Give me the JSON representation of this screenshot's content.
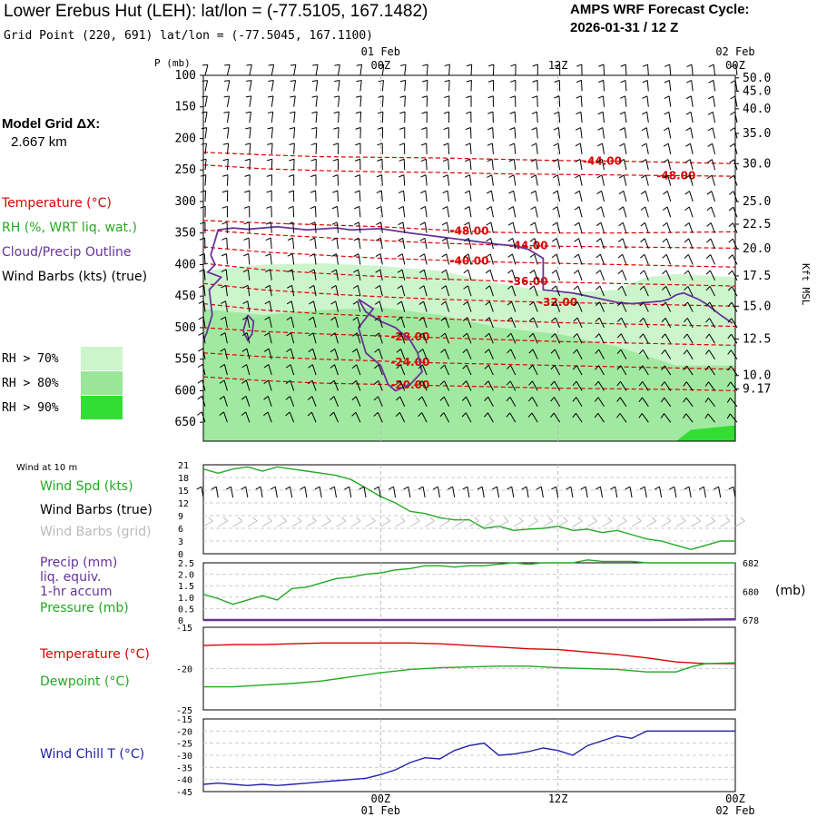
{
  "header": {
    "title": "Lower Erebus Hut (LEH):  lat/lon = (-77.5105, 167.1482)",
    "subtitle": "Grid Point (220, 691) lat/lon = (-77.5045, 167.1100)",
    "cycle_line1": "AMPS WRF Forecast Cycle:",
    "cycle_line2": "2026-01-31 / 12  Z",
    "grid_label1": "Model Grid ΔX:",
    "grid_label2": "2.667 km"
  },
  "time_axis": {
    "top_labels": [
      {
        "date": "01 Feb",
        "time": "00Z",
        "hour": 12
      },
      {
        "date": "",
        "time": "12Z",
        "hour": 24
      },
      {
        "date": "02 Feb",
        "time": "00Z",
        "hour": 36
      }
    ],
    "bottom_labels": [
      {
        "time": "00Z",
        "date": "01 Feb",
        "hour": 12
      },
      {
        "time": "12Z",
        "date": "",
        "hour": 24
      },
      {
        "time": "00Z",
        "date": "02 Feb",
        "hour": 36
      }
    ]
  },
  "legend": {
    "temperature": "Temperature (°C)",
    "rh": "RH (%, WRT liq. wat.)",
    "cloud": "Cloud/Precip Outline",
    "wind": "Wind Barbs (kts) (true)",
    "rh70": "RH > 70%",
    "rh80": "RH > 80%",
    "rh90": "RH > 90%",
    "color_temp": "#dd0000",
    "color_rh": "#22aa22",
    "color_cloud": "#663399",
    "color_rh70": "#ccf5cc",
    "color_rh80": "#99e699",
    "color_rh90": "#33dd33"
  },
  "panel_labels": {
    "wind10m": "Wind at 10 m",
    "wind_spd": "Wind Spd (kts)",
    "wind_barbs_true": "Wind Barbs (true)",
    "wind_barbs_grid": "Wind Barbs (grid)",
    "precip1": "Precip (mm)",
    "precip2": "liq. equiv.",
    "precip3": "1-hr accum",
    "pressure": "Pressure (mb)",
    "pressure_unit": "(mb)",
    "temperature": "Temperature (°C)",
    "dewpoint": "Dewpoint (°C)",
    "windchill": "Wind Chill T (°C)"
  },
  "chart_data": [
    {
      "type": "heatmap",
      "id": "upper-air",
      "left_axis_label": "P (mb)",
      "right_axis_label": "Kft MSL",
      "x_range_hours": [
        0,
        36
      ],
      "pressure_range": [
        100,
        680
      ],
      "pressure_ticks": [
        100,
        150,
        200,
        250,
        300,
        350,
        400,
        450,
        500,
        550,
        600,
        650
      ],
      "height_ticks": [
        {
          "label": "50.0",
          "p": 104
        },
        {
          "label": "45.0",
          "p": 125
        },
        {
          "label": "40.0",
          "p": 153
        },
        {
          "label": "35.0",
          "p": 192
        },
        {
          "label": "30.0",
          "p": 240
        },
        {
          "label": "25.0",
          "p": 300
        },
        {
          "label": "22.5",
          "p": 336
        },
        {
          "label": "20.0",
          "p": 375
        },
        {
          "label": "17.5",
          "p": 418
        },
        {
          "label": "15.0",
          "p": 466
        },
        {
          "label": "12.5",
          "p": 518
        },
        {
          "label": "10.0",
          "p": 576
        },
        {
          "label": "9.17",
          "p": 597
        }
      ],
      "temperature_contours": [
        {
          "label": "-48.00",
          "label_hour": 32,
          "points": [
            [
              0,
              242
            ],
            [
              4,
              248
            ],
            [
              8,
              251
            ],
            [
              12,
              253
            ],
            [
              16,
              254
            ],
            [
              20,
              256
            ],
            [
              24,
              257
            ],
            [
              28,
              258
            ],
            [
              32,
              259
            ],
            [
              36,
              260
            ]
          ]
        },
        {
          "label": "-44.00",
          "label_hour": 27,
          "points": [
            [
              0,
              222
            ],
            [
              4,
              226
            ],
            [
              8,
              229
            ],
            [
              12,
              230
            ],
            [
              16,
              231
            ],
            [
              20,
              233
            ],
            [
              24,
              235
            ],
            [
              28,
              236
            ],
            [
              32,
              238
            ],
            [
              36,
              240
            ]
          ]
        },
        {
          "label": "-48.00",
          "label_hour": 18,
          "points": [
            [
              0,
              330
            ],
            [
              4,
              334
            ],
            [
              8,
              337
            ],
            [
              12,
              340
            ],
            [
              16,
              345
            ],
            [
              20,
              349
            ],
            [
              24,
              350
            ],
            [
              28,
              350
            ],
            [
              32,
              349
            ],
            [
              36,
              348
            ]
          ]
        },
        {
          "label": "-44.00",
          "label_hour": 22,
          "points": [
            [
              0,
              345
            ],
            [
              4,
              352
            ],
            [
              8,
              357
            ],
            [
              12,
              362
            ],
            [
              16,
              366
            ],
            [
              20,
              369
            ],
            [
              24,
              371
            ],
            [
              28,
              372
            ],
            [
              32,
              373
            ],
            [
              36,
              374
            ]
          ]
        },
        {
          "label": "-40.00",
          "label_hour": 18,
          "points": [
            [
              0,
              372
            ],
            [
              4,
              380
            ],
            [
              8,
              385
            ],
            [
              12,
              390
            ],
            [
              16,
              393
            ],
            [
              20,
              396
            ],
            [
              24,
              398
            ],
            [
              28,
              400
            ],
            [
              32,
              402
            ],
            [
              36,
              404
            ]
          ]
        },
        {
          "label": "-36.00",
          "label_hour": 22,
          "points": [
            [
              0,
              398
            ],
            [
              4,
              408
            ],
            [
              8,
              414
            ],
            [
              12,
              419
            ],
            [
              16,
              423
            ],
            [
              20,
              426
            ],
            [
              24,
              428
            ],
            [
              28,
              430
            ],
            [
              32,
              432
            ],
            [
              36,
              434
            ]
          ]
        },
        {
          "label": "-32.00",
          "label_hour": 24,
          "points": [
            [
              0,
              430
            ],
            [
              4,
              440
            ],
            [
              8,
              446
            ],
            [
              12,
              451
            ],
            [
              16,
              455
            ],
            [
              20,
              458
            ],
            [
              24,
              460
            ],
            [
              28,
              462
            ],
            [
              32,
              464
            ],
            [
              36,
              466
            ]
          ]
        },
        {
          "label": "",
          "label_hour": 0,
          "points": [
            [
              0,
              462
            ],
            [
              4,
              472
            ],
            [
              8,
              478
            ],
            [
              12,
              482
            ],
            [
              16,
              486
            ],
            [
              20,
              489
            ],
            [
              24,
              492
            ],
            [
              28,
              494
            ],
            [
              32,
              496
            ],
            [
              36,
              498
            ]
          ]
        },
        {
          "label": "-28.00",
          "label_hour": 14,
          "points": [
            [
              0,
              500
            ],
            [
              4,
              506
            ],
            [
              8,
              510
            ],
            [
              12,
              513
            ],
            [
              16,
              516
            ],
            [
              20,
              519
            ],
            [
              24,
              522
            ],
            [
              28,
              524
            ],
            [
              32,
              526
            ],
            [
              36,
              528
            ]
          ]
        },
        {
          "label": "-24.00",
          "label_hour": 14,
          "points": [
            [
              0,
              540
            ],
            [
              4,
              546
            ],
            [
              8,
              550
            ],
            [
              12,
              553
            ],
            [
              16,
              556
            ],
            [
              20,
              558
            ],
            [
              24,
              560
            ],
            [
              28,
              562
            ],
            [
              32,
              564
            ],
            [
              36,
              566
            ]
          ]
        },
        {
          "label": "-20.00",
          "label_hour": 14,
          "points": [
            [
              0,
              578
            ],
            [
              4,
              584
            ],
            [
              8,
              588
            ],
            [
              12,
              590
            ],
            [
              16,
              592
            ],
            [
              20,
              594
            ],
            [
              24,
              596
            ],
            [
              28,
              597
            ],
            [
              32,
              598
            ],
            [
              36,
              600
            ]
          ]
        }
      ]
    },
    {
      "type": "line",
      "id": "wind-10m",
      "x_range_hours": [
        0,
        36
      ],
      "ylim": [
        0,
        21
      ],
      "yticks": [
        0,
        3,
        6,
        9,
        12,
        15,
        18,
        21
      ],
      "series": [
        {
          "name": "Wind Spd (kts)",
          "color": "#22aa22",
          "x": [
            0,
            1,
            2,
            3,
            4,
            5,
            6,
            7,
            8,
            9,
            10,
            11,
            12,
            13,
            14,
            15,
            16,
            17,
            18,
            19,
            20,
            21,
            22,
            23,
            24,
            25,
            26,
            27,
            28,
            29,
            30,
            31,
            32,
            33,
            34,
            35,
            36
          ],
          "values": [
            20,
            19,
            20,
            20.5,
            19.5,
            20.5,
            20,
            19.5,
            19,
            18.5,
            17.5,
            15.5,
            13.5,
            12,
            10,
            9.5,
            8.5,
            8,
            8,
            6,
            6.5,
            5.5,
            5.8,
            6,
            6.5,
            5.5,
            5.8,
            5,
            5.5,
            4.5,
            3.5,
            3,
            2,
            1,
            2,
            3,
            3
          ]
        }
      ]
    },
    {
      "type": "line",
      "id": "precip-pressure",
      "x_range_hours": [
        0,
        36
      ],
      "ylim_left": [
        0,
        2.5
      ],
      "yticks_left": [
        0,
        0.5,
        1.0,
        1.5,
        2.0,
        2.5
      ],
      "ylim_right": [
        678,
        682
      ],
      "yticks_right": [
        678,
        680,
        682
      ],
      "series": [
        {
          "name": "Pressure (mb)",
          "color": "#22aa22",
          "axis": "right",
          "x": [
            0,
            1,
            2,
            3,
            4,
            5,
            6,
            7,
            8,
            9,
            10,
            11,
            12,
            13,
            14,
            15,
            16,
            17,
            18,
            19,
            20,
            21,
            22,
            23,
            24,
            25,
            26,
            27,
            28,
            29,
            30,
            31,
            32,
            33,
            34,
            35,
            36
          ],
          "values": [
            679.8,
            679.5,
            679.1,
            679.4,
            679.7,
            679.4,
            680.2,
            680.3,
            680.6,
            680.9,
            681,
            681.2,
            681.3,
            681.5,
            681.6,
            681.8,
            681.8,
            681.7,
            681.8,
            681.8,
            681.9,
            682,
            681.9,
            682,
            682,
            682,
            682.2,
            682.1,
            682.1,
            682.1,
            682,
            682,
            682,
            682,
            682,
            682,
            682
          ]
        },
        {
          "name": "Precip (mm)",
          "color": "#663399",
          "axis": "left",
          "x": [
            0,
            6,
            12,
            18,
            24,
            30,
            36
          ],
          "values": [
            0,
            0,
            0,
            0,
            0,
            0,
            0.03
          ]
        }
      ]
    },
    {
      "type": "line",
      "id": "temperature-dewpoint",
      "x_range_hours": [
        0,
        36
      ],
      "ylim": [
        -25,
        -15
      ],
      "yticks": [
        -25,
        -20,
        -15
      ],
      "series": [
        {
          "name": "Temperature (°C)",
          "color": "#dd0000",
          "x": [
            0,
            2,
            4,
            6,
            8,
            10,
            12,
            14,
            16,
            18,
            20,
            22,
            24,
            26,
            28,
            30,
            32,
            34,
            36
          ],
          "values": [
            -17.2,
            -17.1,
            -17.1,
            -17.0,
            -16.9,
            -16.9,
            -16.9,
            -16.9,
            -17.0,
            -17.2,
            -17.4,
            -17.6,
            -17.7,
            -18.0,
            -18.3,
            -18.7,
            -19.2,
            -19.4,
            -19.4
          ]
        },
        {
          "name": "Dewpoint (°C)",
          "color": "#22aa22",
          "x": [
            0,
            2,
            4,
            6,
            8,
            10,
            12,
            14,
            16,
            18,
            20,
            22,
            24,
            26,
            28,
            30,
            32,
            33,
            34,
            36
          ],
          "values": [
            -22.2,
            -22.2,
            -22.0,
            -21.8,
            -21.5,
            -21.0,
            -20.5,
            -20.1,
            -19.9,
            -19.8,
            -19.7,
            -19.7,
            -19.9,
            -20.0,
            -20.1,
            -20.4,
            -20.4,
            -19.8,
            -19.4,
            -19.3
          ]
        }
      ]
    },
    {
      "type": "line",
      "id": "wind-chill",
      "x_range_hours": [
        0,
        36
      ],
      "ylim": [
        -45,
        -15
      ],
      "yticks": [
        -45,
        -40,
        -35,
        -30,
        -25,
        -20,
        -15
      ],
      "series": [
        {
          "name": "Wind Chill T (°C)",
          "color": "#2222aa",
          "x": [
            0,
            1,
            2,
            3,
            4,
            5,
            6,
            7,
            8,
            9,
            10,
            11,
            12,
            13,
            14,
            15,
            16,
            17,
            18,
            19,
            20,
            21,
            22,
            23,
            24,
            25,
            26,
            27,
            28,
            29,
            30,
            31,
            32,
            33,
            34,
            35,
            36
          ],
          "values": [
            -42,
            -41.5,
            -42,
            -42.5,
            -42,
            -42.5,
            -42,
            -41.5,
            -41,
            -40.5,
            -40,
            -39.5,
            -38,
            -36,
            -33,
            -31,
            -31.5,
            -28,
            -26,
            -25,
            -30,
            -29.5,
            -28.5,
            -27,
            -28,
            -30,
            -26,
            -24,
            -22,
            -23,
            -20,
            -20,
            -20,
            -20,
            -20,
            -20,
            -20
          ]
        }
      ]
    }
  ]
}
